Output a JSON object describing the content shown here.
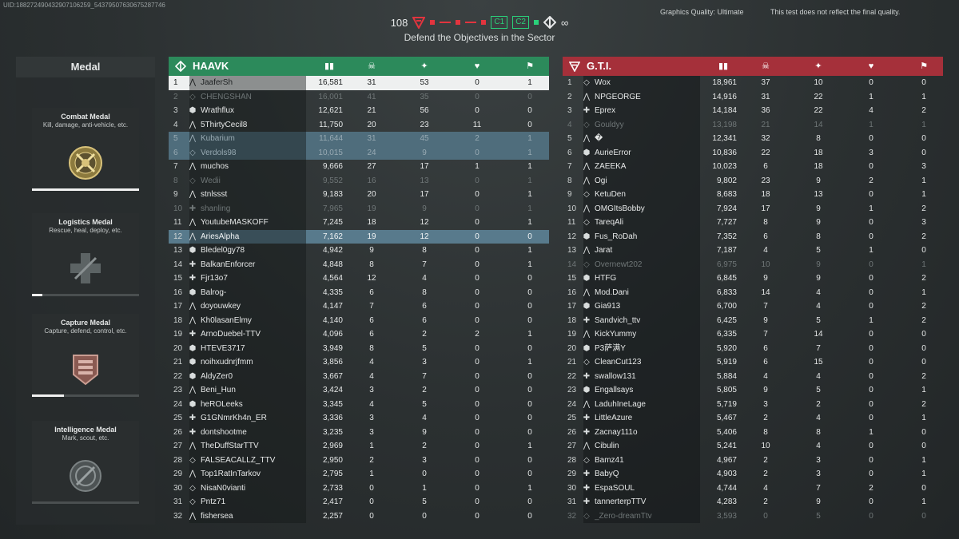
{
  "uid": "UID:188272490432907106259_5437950763067528774­6",
  "hud": {
    "ticket_count": "108",
    "cp1": "C1",
    "cp2": "C2",
    "infinity": "∞",
    "objective": "Defend the Objectives in the Sector",
    "graphics_quality": "Graphics Quality: Ultimate",
    "disclaimer": "This test does not reflect the final quality."
  },
  "medal_panel": {
    "title": "Medal",
    "medals": [
      {
        "name": "Combat Medal",
        "desc": "Kill, damage, anti-vehicle, etc.",
        "progress": 1.0,
        "icon": "combat-medal-icon"
      },
      {
        "name": "Logistics Medal",
        "desc": "Rescue, heal, deploy, etc.",
        "progress": 0.1,
        "icon": "logistics-medal-icon"
      },
      {
        "name": "Capture Medal",
        "desc": "Capture, defend, control, etc.",
        "progress": 0.3,
        "icon": "capture-medal-icon"
      },
      {
        "name": "Intelligence Medal",
        "desc": "Mark, scout, etc.",
        "progress": 0.0,
        "icon": "intelligence-medal-icon"
      }
    ]
  },
  "colors": {
    "haavk": "#2c8a5b",
    "gti": "#a5303a",
    "objective_red": "#e2343e",
    "objective_green": "#2ad17a"
  },
  "column_icons": [
    "score-icon",
    "kills-icon",
    "assists-icon",
    "revives-icon",
    "deaths-icon"
  ],
  "team_left": {
    "name": "HAAVK",
    "rows": [
      [
        "1",
        "JaaferSh",
        "16,581",
        "31",
        "53",
        "0",
        "1"
      ],
      [
        "2",
        "CHENGSHAN",
        "16,001",
        "41",
        "35",
        "0",
        "0"
      ],
      [
        "3",
        "Wrathflux",
        "12,621",
        "21",
        "56",
        "0",
        "0"
      ],
      [
        "4",
        "5ThirtyCecil8",
        "11,750",
        "20",
        "23",
        "11",
        "0"
      ],
      [
        "5",
        "Kubarium",
        "11,644",
        "31",
        "45",
        "2",
        "1"
      ],
      [
        "6",
        "Verdols98",
        "10,015",
        "24",
        "9",
        "0",
        "1"
      ],
      [
        "7",
        "muchos",
        "9,666",
        "27",
        "17",
        "1",
        "1"
      ],
      [
        "8",
        "Wedii",
        "9,552",
        "16",
        "13",
        "0",
        "1"
      ],
      [
        "9",
        "stnlssst",
        "9,183",
        "20",
        "17",
        "0",
        "1"
      ],
      [
        "10",
        "shanling",
        "7,965",
        "19",
        "9",
        "0",
        "1"
      ],
      [
        "11",
        "YoutubeMASKOFF",
        "7,245",
        "18",
        "12",
        "0",
        "1"
      ],
      [
        "12",
        "AriesAlpha",
        "7,162",
        "19",
        "12",
        "0",
        "0"
      ],
      [
        "13",
        "Bledel0gy78",
        "4,942",
        "9",
        "8",
        "0",
        "1"
      ],
      [
        "14",
        "BalkanEnforcer",
        "4,848",
        "8",
        "7",
        "0",
        "1"
      ],
      [
        "15",
        "Fjr13o7",
        "4,564",
        "12",
        "4",
        "0",
        "0"
      ],
      [
        "16",
        "Balrog-",
        "4,335",
        "6",
        "8",
        "0",
        "0"
      ],
      [
        "17",
        "doyouwkey",
        "4,147",
        "7",
        "6",
        "0",
        "0"
      ],
      [
        "18",
        "Kh0lasanElmy",
        "4,140",
        "6",
        "6",
        "0",
        "0"
      ],
      [
        "19",
        "ArnoDuebel-TTV",
        "4,096",
        "6",
        "2",
        "2",
        "1"
      ],
      [
        "20",
        "HTEVE3717",
        "3,949",
        "8",
        "5",
        "0",
        "0"
      ],
      [
        "21",
        "noihxudnrjfmm",
        "3,856",
        "4",
        "3",
        "0",
        "1"
      ],
      [
        "22",
        "AldyZer0",
        "3,667",
        "4",
        "7",
        "0",
        "0"
      ],
      [
        "23",
        "Beni_Hun",
        "3,424",
        "3",
        "2",
        "0",
        "0"
      ],
      [
        "24",
        "heROLeeks",
        "3,345",
        "4",
        "5",
        "0",
        "0"
      ],
      [
        "25",
        "G1GNmrKh4n_ER",
        "3,336",
        "3",
        "4",
        "0",
        "0"
      ],
      [
        "26",
        "dontshootme",
        "3,235",
        "3",
        "9",
        "0",
        "0"
      ],
      [
        "27",
        "TheDuffStarTTV",
        "2,969",
        "1",
        "2",
        "0",
        "1"
      ],
      [
        "28",
        "FALSEACALLZ_TTV",
        "2,950",
        "2",
        "3",
        "0",
        "0"
      ],
      [
        "29",
        "Top1RatInTarkov",
        "2,795",
        "1",
        "0",
        "0",
        "0"
      ],
      [
        "30",
        "NisaN0vianti",
        "2,733",
        "0",
        "1",
        "0",
        "1"
      ],
      [
        "31",
        "Pntz71",
        "2,417",
        "0",
        "5",
        "0",
        "0"
      ],
      [
        "32",
        "fishersea",
        "2,257",
        "0",
        "0",
        "0",
        "0"
      ]
    ]
  },
  "team_right": {
    "name": "G.T.I.",
    "rows": [
      [
        "1",
        "Wox",
        "18,961",
        "37",
        "10",
        "0",
        "0"
      ],
      [
        "2",
        "NPGEORGE",
        "14,916",
        "31",
        "22",
        "1",
        "1"
      ],
      [
        "3",
        "Eprex",
        "14,184",
        "36",
        "22",
        "4",
        "2"
      ],
      [
        "4",
        "Gouldyy",
        "13,198",
        "21",
        "14",
        "1",
        "1"
      ],
      [
        "5",
        "�",
        "12,341",
        "32",
        "8",
        "0",
        "0"
      ],
      [
        "6",
        "AurieError",
        "10,836",
        "22",
        "18",
        "3",
        "0"
      ],
      [
        "7",
        "ZAEEKA",
        "10,023",
        "6",
        "18",
        "0",
        "3"
      ],
      [
        "8",
        "Ogi",
        "9,802",
        "23",
        "9",
        "2",
        "1"
      ],
      [
        "9",
        "KetuDen",
        "8,683",
        "18",
        "13",
        "0",
        "1"
      ],
      [
        "10",
        "OMGItsBobby",
        "7,924",
        "17",
        "9",
        "1",
        "2"
      ],
      [
        "11",
        "TareqAli",
        "7,727",
        "8",
        "9",
        "0",
        "3"
      ],
      [
        "12",
        "Fus_RoDah",
        "7,352",
        "6",
        "8",
        "0",
        "2"
      ],
      [
        "13",
        "Jarat",
        "7,187",
        "4",
        "5",
        "1",
        "0"
      ],
      [
        "14",
        "Overnewt202",
        "6,975",
        "10",
        "9",
        "0",
        "1"
      ],
      [
        "15",
        "HTFG",
        "6,845",
        "9",
        "9",
        "0",
        "2"
      ],
      [
        "16",
        "Mod.Dani",
        "6,833",
        "14",
        "4",
        "0",
        "1"
      ],
      [
        "17",
        "Gia913",
        "6,700",
        "7",
        "4",
        "0",
        "2"
      ],
      [
        "18",
        "Sandvich_ttv",
        "6,425",
        "9",
        "5",
        "1",
        "2"
      ],
      [
        "19",
        "KickYummy",
        "6,335",
        "7",
        "14",
        "0",
        "0"
      ],
      [
        "20",
        "P3萨满Y",
        "5,920",
        "6",
        "7",
        "0",
        "0"
      ],
      [
        "21",
        "CleanCut123",
        "5,919",
        "6",
        "15",
        "0",
        "0"
      ],
      [
        "22",
        "swallow131",
        "5,884",
        "4",
        "4",
        "0",
        "2"
      ],
      [
        "23",
        "Engallsays",
        "5,805",
        "9",
        "5",
        "0",
        "1"
      ],
      [
        "24",
        "LaduhIneLage",
        "5,719",
        "3",
        "2",
        "0",
        "2"
      ],
      [
        "25",
        "LittleAzure",
        "5,467",
        "2",
        "4",
        "0",
        "1"
      ],
      [
        "26",
        "Zacnay111o",
        "5,406",
        "8",
        "8",
        "1",
        "0"
      ],
      [
        "27",
        "Cibulin",
        "5,241",
        "10",
        "4",
        "0",
        "0"
      ],
      [
        "28",
        "Bamz41",
        "4,967",
        "2",
        "3",
        "0",
        "1"
      ],
      [
        "29",
        "BabyQ",
        "4,903",
        "2",
        "3",
        "0",
        "1"
      ],
      [
        "30",
        "EspaSOUL",
        "4,744",
        "4",
        "7",
        "2",
        "0"
      ],
      [
        "31",
        "tannerterpTTV",
        "4,283",
        "2",
        "9",
        "0",
        "1"
      ],
      [
        "32",
        "_Zero-dreamTtv",
        "3,593",
        "0",
        "5",
        "0",
        "0"
      ]
    ]
  }
}
